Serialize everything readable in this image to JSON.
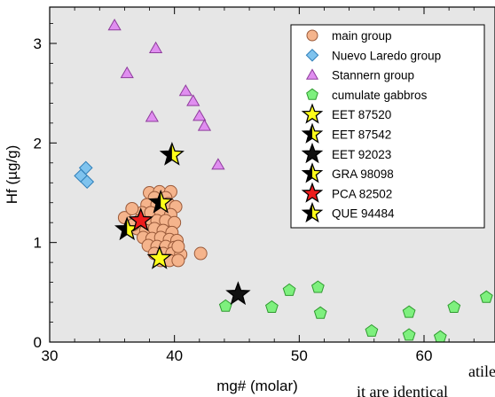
{
  "chart_data": {
    "type": "scatter",
    "xlabel": "mg# (molar)",
    "ylabel": "Hf (µg/g)",
    "xlim": [
      30,
      65
    ],
    "ylim": [
      0,
      3.3
    ],
    "xticks": [
      30,
      40,
      50,
      60
    ],
    "yticks": [
      0,
      1,
      2,
      3
    ],
    "grid": false,
    "background": "#e6e6e6",
    "legend_position": "top-right",
    "series": [
      {
        "name": "main group",
        "marker": "circle",
        "color": "#f5b48c",
        "stroke": "#9a5a3a",
        "points": [
          [
            38.0,
            1.5
          ],
          [
            38.8,
            1.51
          ],
          [
            39.7,
            1.51
          ],
          [
            38.4,
            1.45
          ],
          [
            39.3,
            1.45
          ],
          [
            37.8,
            1.38
          ],
          [
            38.6,
            1.38
          ],
          [
            39.5,
            1.39
          ],
          [
            40.1,
            1.36
          ],
          [
            37.4,
            1.3
          ],
          [
            38.1,
            1.3
          ],
          [
            38.9,
            1.31
          ],
          [
            39.7,
            1.28
          ],
          [
            37.2,
            1.22
          ],
          [
            37.9,
            1.2
          ],
          [
            38.6,
            1.22
          ],
          [
            39.3,
            1.22
          ],
          [
            40.0,
            1.2
          ],
          [
            37.0,
            1.14
          ],
          [
            37.7,
            1.12
          ],
          [
            38.4,
            1.14
          ],
          [
            39.1,
            1.12
          ],
          [
            39.8,
            1.1
          ],
          [
            37.5,
            1.05
          ],
          [
            38.2,
            1.04
          ],
          [
            38.9,
            1.05
          ],
          [
            39.6,
            1.03
          ],
          [
            40.2,
            1.02
          ],
          [
            37.9,
            0.97
          ],
          [
            38.6,
            0.96
          ],
          [
            39.3,
            0.96
          ],
          [
            40.0,
            0.95
          ],
          [
            38.4,
            0.89
          ],
          [
            39.1,
            0.89
          ],
          [
            39.8,
            0.89
          ],
          [
            40.5,
            0.88
          ],
          [
            38.9,
            0.82
          ],
          [
            39.6,
            0.82
          ],
          [
            40.3,
            0.82
          ],
          [
            42.1,
            0.89
          ],
          [
            36.0,
            1.25
          ],
          [
            36.6,
            1.34
          ],
          [
            40.3,
            0.96
          ],
          [
            36.7,
            1.18
          ]
        ]
      },
      {
        "name": "Nuevo Laredo group",
        "marker": "diamond",
        "color": "#7fc3ee",
        "stroke": "#2f7eb8",
        "points": [
          [
            32.9,
            1.75
          ],
          [
            32.5,
            1.67
          ],
          [
            33.0,
            1.61
          ]
        ]
      },
      {
        "name": "Stannern group",
        "marker": "triangle",
        "color": "#e08ef0",
        "stroke": "#8e3c9c",
        "points": [
          [
            35.2,
            3.18
          ],
          [
            38.5,
            2.95
          ],
          [
            36.2,
            2.7
          ],
          [
            40.9,
            2.52
          ],
          [
            41.5,
            2.42
          ],
          [
            42.0,
            2.27
          ],
          [
            42.4,
            2.17
          ],
          [
            38.2,
            2.26
          ],
          [
            43.5,
            1.78
          ]
        ]
      },
      {
        "name": "cumulate gabbros",
        "marker": "pentagon",
        "color": "#7ef07e",
        "stroke": "#2e9a2e",
        "points": [
          [
            44.1,
            0.36
          ],
          [
            47.8,
            0.35
          ],
          [
            49.2,
            0.52
          ],
          [
            51.5,
            0.55
          ],
          [
            51.7,
            0.29
          ],
          [
            55.8,
            0.11
          ],
          [
            58.8,
            0.3
          ],
          [
            58.8,
            0.07
          ],
          [
            61.3,
            0.05
          ],
          [
            62.4,
            0.35
          ],
          [
            65.0,
            0.45
          ]
        ]
      },
      {
        "name": "EET 87520",
        "marker": "star",
        "color": "#ffff1a",
        "stroke": "#000000",
        "points": [
          [
            38.8,
            0.84
          ]
        ]
      },
      {
        "name": "EET 87542",
        "marker": "star",
        "color": "#ffff1a",
        "stroke": "#000000",
        "half_fill": "#000000",
        "points": [
          [
            39.8,
            1.88
          ]
        ]
      },
      {
        "name": "EET 92023",
        "marker": "star",
        "color": "#111111",
        "stroke": "#000000",
        "points": [
          [
            45.1,
            0.48
          ]
        ]
      },
      {
        "name": "GRA 98098",
        "marker": "star",
        "color": "#ffff1a",
        "stroke": "#000000",
        "half_fill": "#000000",
        "points": [
          [
            36.2,
            1.13
          ]
        ]
      },
      {
        "name": "PCA 82502",
        "marker": "star",
        "color": "#ee1c1c",
        "stroke": "#000000",
        "points": [
          [
            37.3,
            1.22
          ]
        ]
      },
      {
        "name": "QUE 94484",
        "marker": "star",
        "color": "#ffff1a",
        "stroke": "#000000",
        "half_fill": "#000000",
        "points": [
          [
            38.9,
            1.4
          ]
        ]
      }
    ]
  },
  "overlay_text": [
    "atile",
    "it are identical"
  ]
}
